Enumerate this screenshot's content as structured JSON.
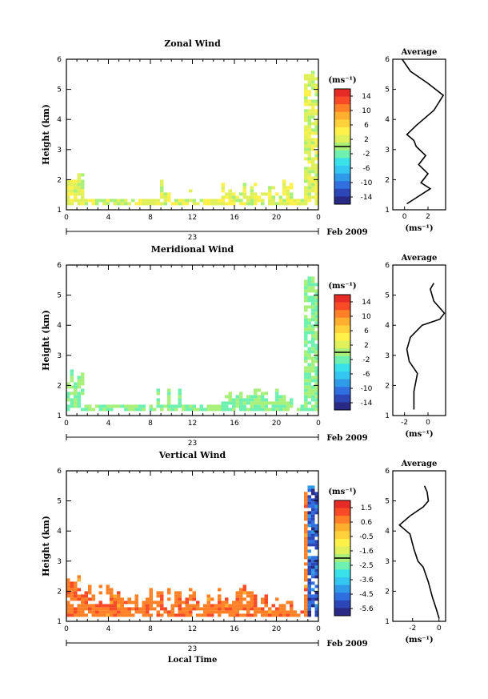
{
  "chart_data": [
    {
      "type": "heatmap",
      "title": "Zonal Wind",
      "ylabel": "Height (km)",
      "xlabel": "",
      "x_ticks": [
        "0",
        "4",
        "8",
        "12",
        "16",
        "20",
        "0"
      ],
      "y_ticks": [
        "1",
        "2",
        "3",
        "4",
        "5",
        "6"
      ],
      "xlim": [
        0,
        24
      ],
      "ylim": [
        1,
        6
      ],
      "day_label": "23",
      "date_label": "Feb 2009",
      "colorbar": {
        "unit": "(ms⁻¹)",
        "labels": [
          "14",
          "10",
          "6",
          "2",
          "-2",
          "-6",
          "-10",
          "-14"
        ],
        "range": [
          -14,
          14
        ]
      },
      "dominant_values": [
        0,
        4
      ],
      "profile": {
        "title": "Average",
        "xlabel": "(ms⁻¹)",
        "x_ticks": [
          "0",
          "2"
        ],
        "xlim": [
          -1,
          3.5
        ],
        "y_ticks": [
          "1",
          "2",
          "3",
          "4",
          "5",
          "6"
        ],
        "points": [
          [
            0.2,
            1.2
          ],
          [
            1.0,
            1.4
          ],
          [
            2.2,
            1.7
          ],
          [
            1.4,
            1.9
          ],
          [
            2.0,
            2.2
          ],
          [
            1.2,
            2.5
          ],
          [
            1.8,
            2.8
          ],
          [
            1.0,
            3.1
          ],
          [
            0.8,
            3.3
          ],
          [
            0.2,
            3.5
          ],
          [
            1.0,
            3.8
          ],
          [
            2.5,
            4.3
          ],
          [
            3.3,
            4.8
          ],
          [
            2.0,
            5.2
          ],
          [
            0.5,
            5.6
          ],
          [
            -0.2,
            6.0
          ]
        ]
      }
    },
    {
      "type": "heatmap",
      "title": "Meridional Wind",
      "ylabel": "Height (km)",
      "xlabel": "",
      "x_ticks": [
        "0",
        "4",
        "8",
        "12",
        "16",
        "20",
        "0"
      ],
      "y_ticks": [
        "1",
        "2",
        "3",
        "4",
        "5",
        "6"
      ],
      "xlim": [
        0,
        24
      ],
      "ylim": [
        1,
        6
      ],
      "day_label": "23",
      "date_label": "Feb 2009",
      "colorbar": {
        "unit": "(ms⁻¹)",
        "labels": [
          "14",
          "10",
          "6",
          "2",
          "-2",
          "-6",
          "-10",
          "-14"
        ],
        "range": [
          -14,
          14
        ]
      },
      "dominant_values": [
        -3,
        1
      ],
      "profile": {
        "title": "Average",
        "xlabel": "(ms⁻¹)",
        "x_ticks": [
          "-2",
          "0"
        ],
        "xlim": [
          -3,
          1.5
        ],
        "y_ticks": [
          "1",
          "2",
          "3",
          "4",
          "5",
          "6"
        ],
        "points": [
          [
            -1.2,
            1.2
          ],
          [
            -1.2,
            1.8
          ],
          [
            -0.9,
            2.4
          ],
          [
            -1.6,
            2.8
          ],
          [
            -1.8,
            3.2
          ],
          [
            -1.5,
            3.6
          ],
          [
            -0.5,
            4.0
          ],
          [
            1.0,
            4.2
          ],
          [
            1.4,
            4.4
          ],
          [
            0.5,
            4.8
          ],
          [
            0.2,
            5.2
          ],
          [
            0.5,
            5.4
          ]
        ]
      }
    },
    {
      "type": "heatmap",
      "title": "Vertical Wind",
      "ylabel": "Height (km)",
      "xlabel": "Local Time",
      "x_ticks": [
        "0",
        "4",
        "8",
        "12",
        "16",
        "20",
        "0"
      ],
      "y_ticks": [
        "1",
        "2",
        "3",
        "4",
        "5",
        "6"
      ],
      "xlim": [
        0,
        24
      ],
      "ylim": [
        1,
        6
      ],
      "day_label": "23",
      "date_label": "Feb 2009",
      "colorbar": {
        "unit": "(ms⁻¹)",
        "labels": [
          "1.5",
          "0.6",
          "-0.5",
          "-1.6",
          "-2.5",
          "-3.6",
          "-4.5",
          "-5.6"
        ],
        "range": [
          -5.6,
          1.5
        ]
      },
      "dominant_values": [
        0.2,
        0.9
      ],
      "profile": {
        "title": "Average",
        "xlabel": "(ms⁻¹)",
        "x_ticks": [
          "-2",
          "0"
        ],
        "xlim": [
          -3.5,
          0.5
        ],
        "y_ticks": [
          "1",
          "2",
          "3",
          "4",
          "5",
          "6"
        ],
        "points": [
          [
            0,
            1.1
          ],
          [
            -0.2,
            1.4
          ],
          [
            -0.5,
            1.8
          ],
          [
            -0.8,
            2.3
          ],
          [
            -1.2,
            2.8
          ],
          [
            -1.6,
            3.0
          ],
          [
            -1.9,
            3.4
          ],
          [
            -2.2,
            3.9
          ],
          [
            -3.0,
            4.2
          ],
          [
            -2.2,
            4.5
          ],
          [
            -1.2,
            4.8
          ],
          [
            -0.8,
            5.0
          ],
          [
            -0.9,
            5.3
          ],
          [
            -1.1,
            5.5
          ]
        ]
      }
    }
  ]
}
